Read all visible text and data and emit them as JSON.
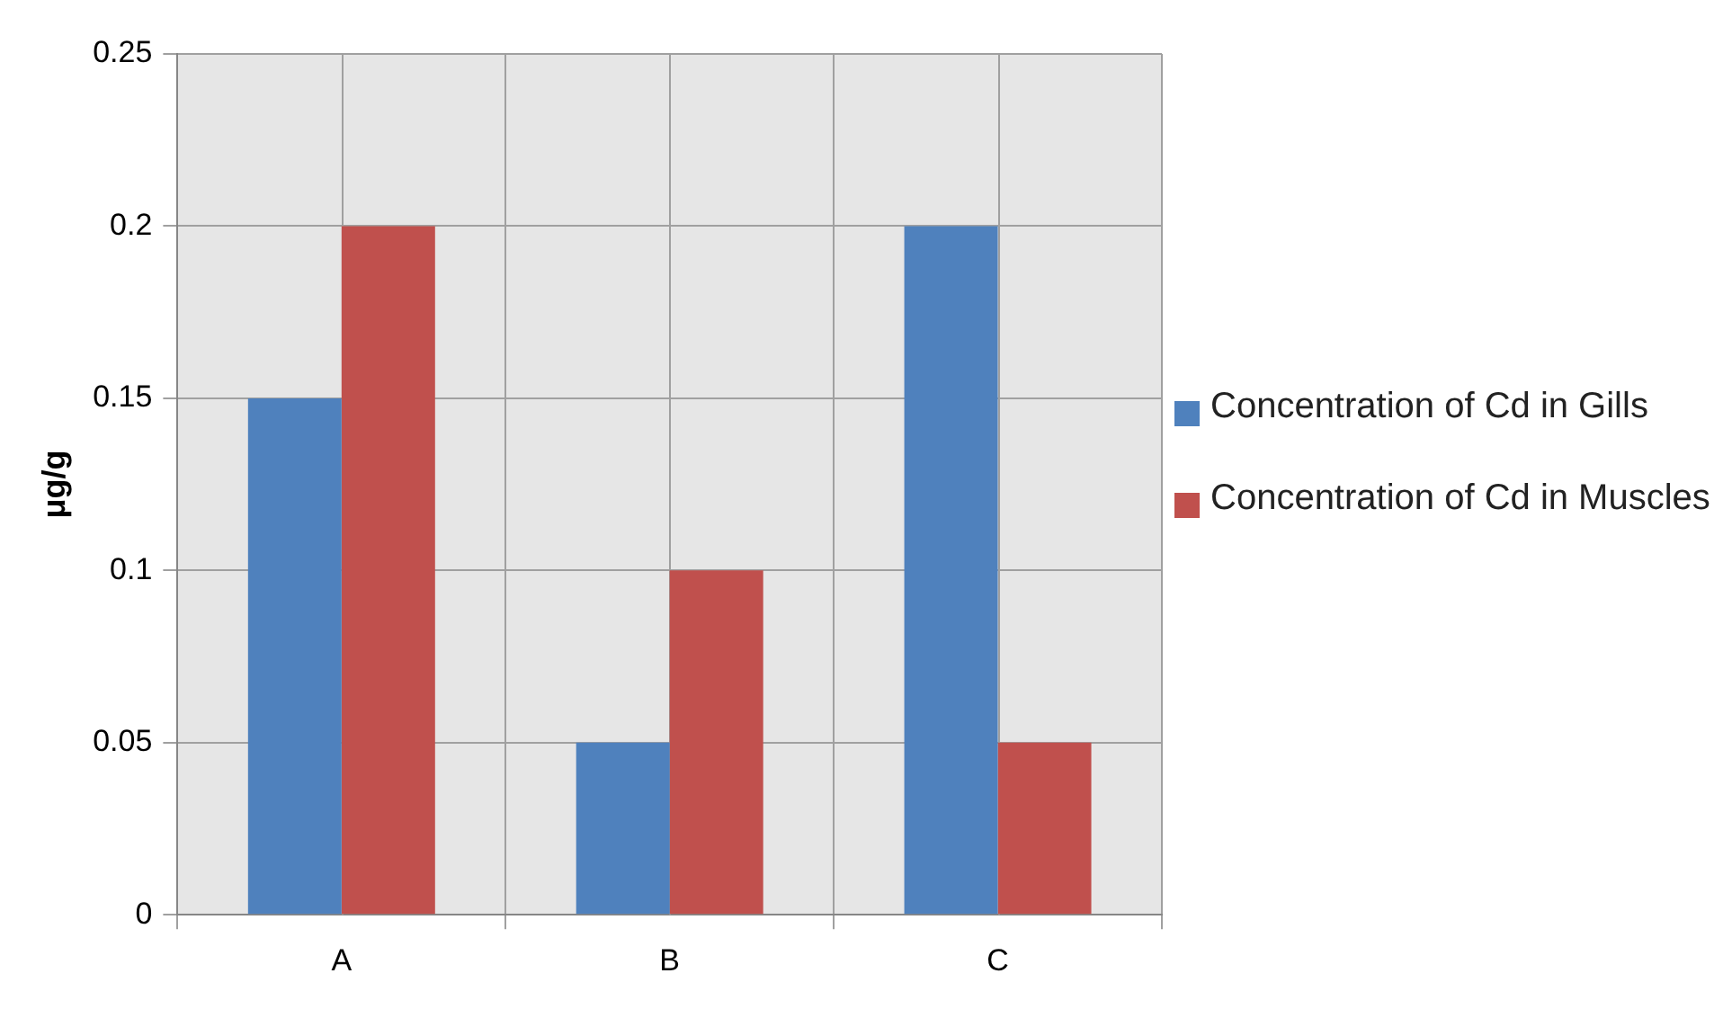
{
  "chart_data": {
    "type": "bar",
    "ylabel": "μg/g",
    "categories": [
      "A",
      "B",
      "C"
    ],
    "series": [
      {
        "name": "Concentration of Cd in Gills",
        "color": "#4f81bd",
        "values": [
          0.15,
          0.05,
          0.2
        ]
      },
      {
        "name": "Concentration of Cd in Muscles",
        "color": "#c0504d",
        "values": [
          0.2,
          0.1,
          0.05
        ]
      }
    ],
    "ylim": [
      0,
      0.25
    ],
    "yticks": [
      0,
      0.05,
      0.1,
      0.15,
      0.2,
      0.25
    ],
    "grid": true,
    "legend": "right"
  }
}
